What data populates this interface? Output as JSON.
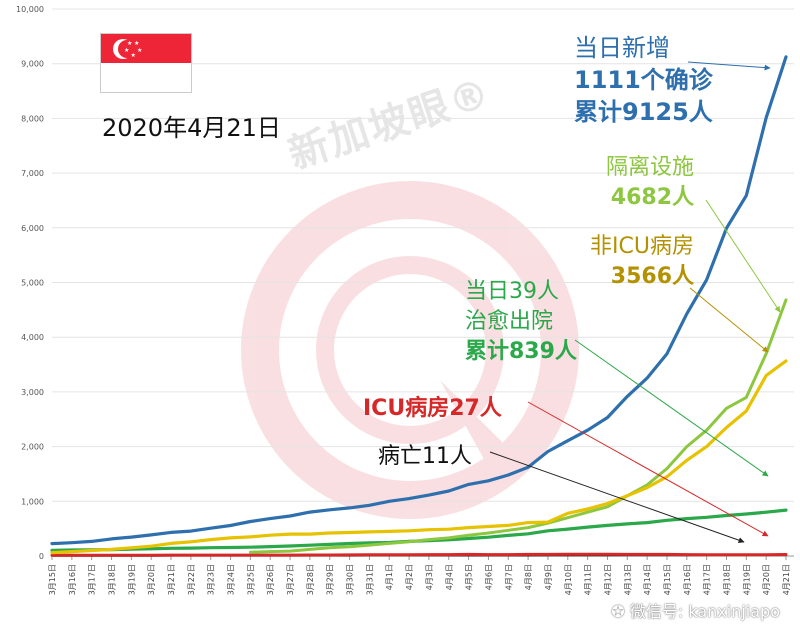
{
  "date_label": "2020年4月21日",
  "watermark": "新加坡眼®",
  "wechat": "微信号: kanxinjiapo",
  "annotations": {
    "total": [
      "当日新增",
      "1111个确诊",
      "累计9125人"
    ],
    "isolation": [
      "隔离设施",
      "4682人"
    ],
    "non_icu": [
      "非ICU病房",
      "3566人"
    ],
    "discharged": [
      "当日39人",
      "治愈出院",
      "累计839人"
    ],
    "icu": [
      "ICU病房27人"
    ],
    "deaths": [
      "病亡11人"
    ]
  },
  "colors": {
    "total": "#2e6fad",
    "isolation": "#8dc63f",
    "non_icu": "#e6c200",
    "non_icu_text": "#b39100",
    "discharged": "#2aa84a",
    "icu": "#d62828",
    "deaths": "#222222",
    "flag_red": "#ee2536"
  },
  "chart_data": {
    "type": "line",
    "ylim": [
      0,
      10000
    ],
    "yticks": [
      "0",
      "1,000",
      "2,000",
      "3,000",
      "4,000",
      "5,000",
      "6,000",
      "7,000",
      "8,000",
      "9,000",
      "10,000"
    ],
    "categories": [
      "3月15日",
      "3月16日",
      "3月17日",
      "3月18日",
      "3月19日",
      "3月20日",
      "3月21日",
      "3月22日",
      "3月23日",
      "3月24日",
      "3月25日",
      "3月26日",
      "3月27日",
      "3月28日",
      "3月29日",
      "3月30日",
      "3月31日",
      "4月1日",
      "4月2日",
      "4月3日",
      "4月4日",
      "4月5日",
      "4月6日",
      "4月7日",
      "4月8日",
      "4月9日",
      "4月10日",
      "4月11日",
      "4月12日",
      "4月13日",
      "4月14日",
      "4月15日",
      "4月16日",
      "4月17日",
      "4月18日",
      "4月19日",
      "4月20日",
      "4月21日"
    ],
    "series": [
      {
        "key": "total",
        "values": [
          226,
          243,
          266,
          313,
          345,
          385,
          432,
          455,
          509,
          558,
          631,
          683,
          732,
          802,
          844,
          879,
          926,
          1000,
          1049,
          1114,
          1189,
          1309,
          1375,
          1481,
          1623,
          1910,
          2108,
          2299,
          2532,
          2918,
          3252,
          3699,
          4427,
          5050,
          5992,
          6588,
          8014,
          9125
        ]
      },
      {
        "key": "isolation",
        "values": [
          null,
          null,
          null,
          null,
          null,
          null,
          null,
          null,
          null,
          null,
          70,
          80,
          90,
          120,
          150,
          170,
          200,
          230,
          260,
          300,
          330,
          380,
          420,
          470,
          520,
          600,
          700,
          800,
          900,
          1100,
          1300,
          1600,
          2000,
          2300,
          2700,
          2900,
          3700,
          4682
        ]
      },
      {
        "key": "non_icu",
        "values": [
          60,
          80,
          100,
          120,
          150,
          180,
          230,
          260,
          300,
          330,
          350,
          380,
          400,
          400,
          420,
          430,
          440,
          450,
          460,
          480,
          490,
          520,
          540,
          560,
          610,
          620,
          780,
          860,
          960,
          1100,
          1250,
          1450,
          1750,
          2000,
          2350,
          2650,
          3300,
          3566
        ]
      },
      {
        "key": "discharged",
        "values": [
          105,
          109,
          114,
          117,
          124,
          131,
          140,
          144,
          152,
          156,
          160,
          172,
          183,
          198,
          212,
          228,
          240,
          246,
          266,
          282,
          297,
          320,
          344,
          377,
          406,
          460,
          492,
          528,
          560,
          586,
          611,
          652,
          683,
          707,
          740,
          768,
          800,
          839
        ]
      },
      {
        "key": "icu",
        "values": [
          12,
          14,
          15,
          15,
          15,
          15,
          17,
          17,
          16,
          17,
          17,
          17,
          17,
          19,
          19,
          20,
          24,
          24,
          24,
          25,
          26,
          29,
          26,
          26,
          30,
          29,
          31,
          31,
          32,
          30,
          30,
          29,
          26,
          23,
          23,
          22,
          24,
          27
        ]
      },
      {
        "key": "deaths",
        "values": [
          0,
          0,
          0,
          0,
          0,
          0,
          2,
          2,
          2,
          2,
          2,
          2,
          2,
          2,
          2,
          2,
          3,
          3,
          4,
          5,
          6,
          6,
          6,
          6,
          6,
          7,
          7,
          8,
          8,
          9,
          10,
          10,
          10,
          11,
          11,
          11,
          11,
          11
        ]
      }
    ]
  }
}
